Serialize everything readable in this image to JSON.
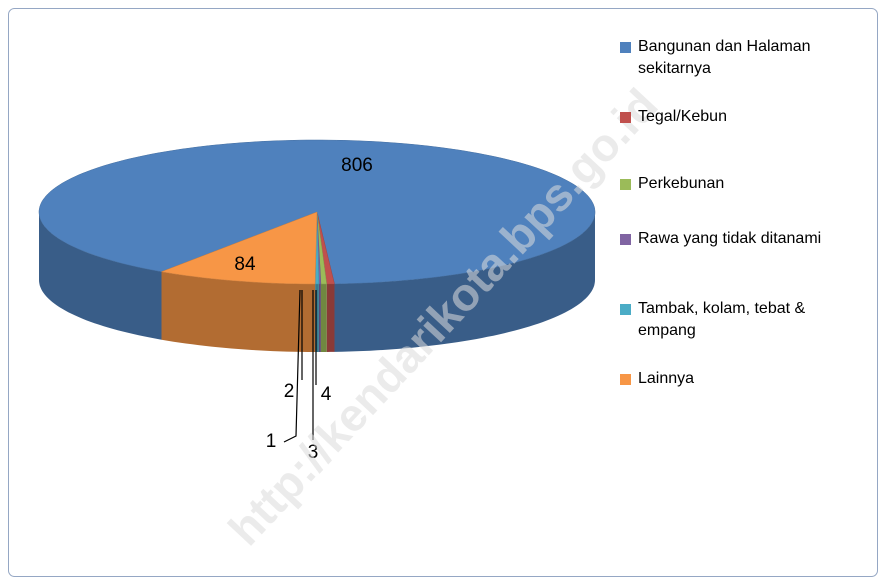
{
  "chart_data": {
    "type": "pie3d",
    "categories": [
      "Bangunan dan Halaman sekitarnya",
      "Tegal/Kebun",
      "Perkebunan",
      "Rawa yang tidak ditanami",
      "Tambak, kolam, tebat & empang",
      "Lainnya"
    ],
    "values": [
      806,
      4,
      3,
      1,
      2,
      84
    ],
    "colors": [
      "#4f81bd",
      "#c0504d",
      "#9bbb59",
      "#8064a2",
      "#4bacc6",
      "#f79646"
    ],
    "legend": "right",
    "watermark": "http://kendarikota.bps.go.id"
  }
}
